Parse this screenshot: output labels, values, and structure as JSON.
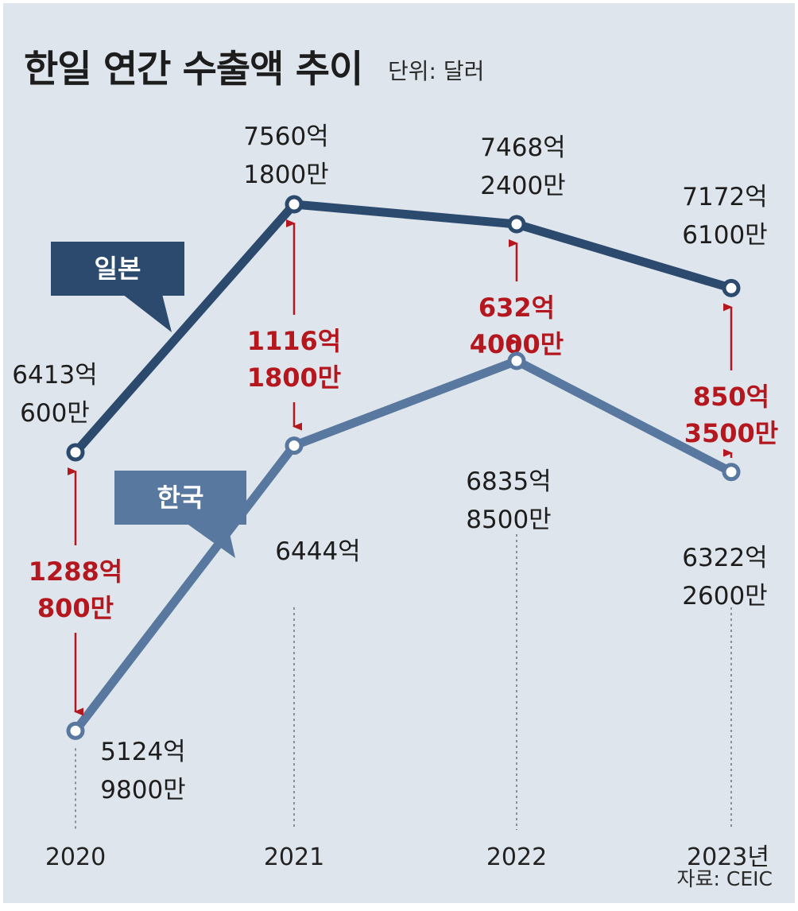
{
  "title": "한일 연간 수출액 추이",
  "unit": "단위: 달러",
  "source": "자료: CEIC",
  "colors": {
    "background": "#dfe5ec",
    "japan_line": "#2c4a6e",
    "korea_line": "#58789f",
    "gap": "#b5171e",
    "text": "#1d1d1d"
  },
  "chart_data": {
    "type": "line",
    "title": "한일 연간 수출액 추이",
    "subtitle": "단위: 달러",
    "categories": [
      "2020",
      "2021",
      "2022",
      "2023년"
    ],
    "ylim": [
      4500,
      8000
    ],
    "grid": false,
    "legend": "inline",
    "series": [
      {
        "name": "일본",
        "unit": "억 달러",
        "values": [
          6413.06,
          7560.18,
          7468.24,
          7172.61
        ],
        "labels": [
          [
            "6413억",
            "600만"
          ],
          [
            "7560억",
            "1800만"
          ],
          [
            "7468억",
            "2400만"
          ],
          [
            "7172억",
            "6100만"
          ]
        ]
      },
      {
        "name": "한국",
        "unit": "억 달러",
        "values": [
          5124.98,
          6444.0,
          6835.85,
          6322.26
        ],
        "labels": [
          [
            "5124억",
            "9800만"
          ],
          [
            "6444억"
          ],
          [
            "6835억",
            "8500만"
          ],
          [
            "6322억",
            "2600만"
          ]
        ]
      }
    ],
    "gaps": [
      {
        "value": 1288.08,
        "label": [
          "1288억",
          "800만"
        ]
      },
      {
        "value": 1116.18,
        "label": [
          "1116억",
          "1800만"
        ]
      },
      {
        "value": 632.4,
        "label": [
          "632억",
          "4000만"
        ]
      },
      {
        "value": 850.35,
        "label": [
          "850억",
          "3500만"
        ]
      }
    ],
    "source": "자료: CEIC"
  }
}
